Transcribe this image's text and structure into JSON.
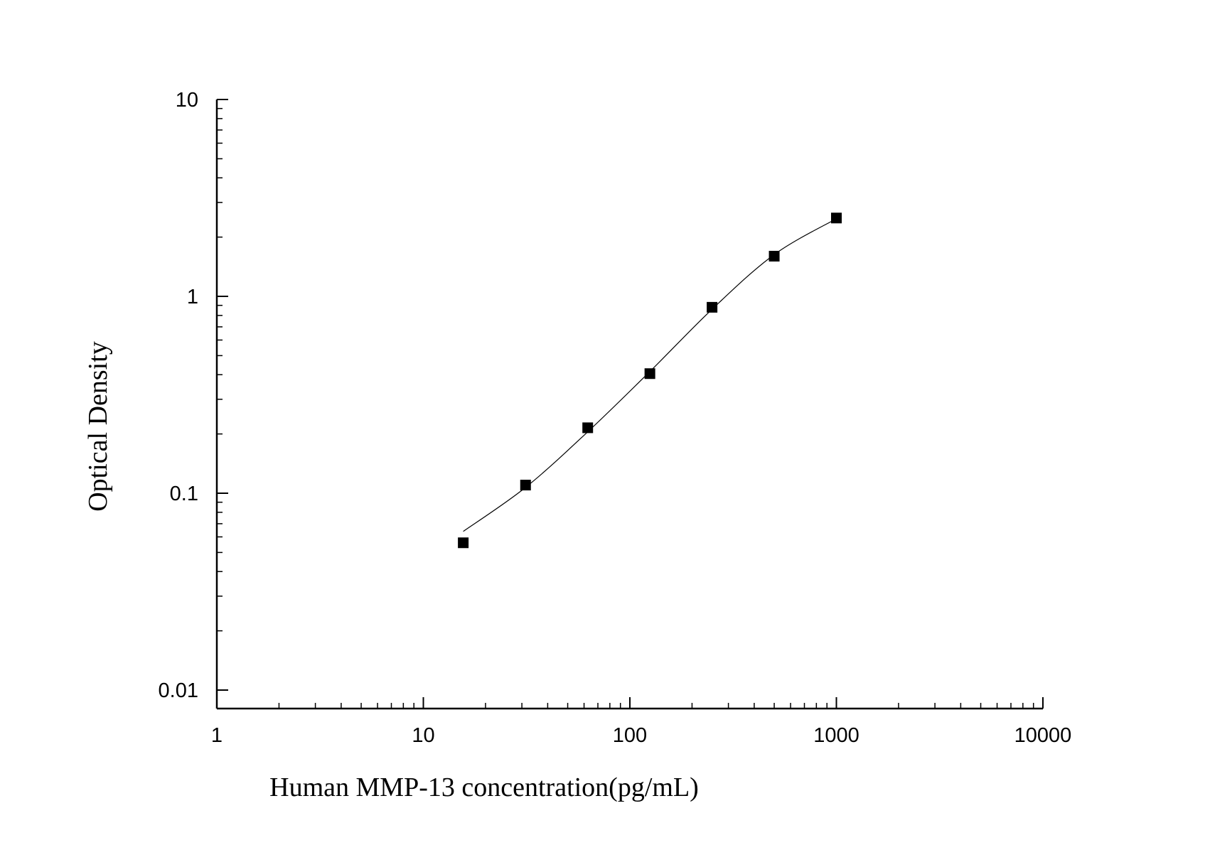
{
  "chart_data": {
    "type": "scatter",
    "title": "",
    "xlabel": "Human MMP-13 concentration(pg/mL)",
    "ylabel": "Optical Density",
    "x_scale": "log",
    "y_scale": "log",
    "xlim": [
      1,
      10000
    ],
    "ylim": [
      0.01,
      10
    ],
    "x_ticks": [
      "1",
      "10",
      "100",
      "1000",
      "10000"
    ],
    "y_ticks": [
      "10",
      "1",
      "0.1",
      "0.01"
    ],
    "grid": false,
    "legend": "none",
    "series": [
      {
        "marker": "square",
        "color": "#000000",
        "x": [
          15.6,
          31.25,
          62.5,
          125,
          250,
          500,
          1000
        ],
        "y": [
          0.056,
          0.11,
          0.215,
          0.405,
          0.88,
          1.6,
          2.5
        ]
      }
    ],
    "fit_curve": {
      "color": "#000000",
      "x": [
        15.6,
        31.25,
        62.5,
        125,
        250,
        500,
        1000
      ],
      "y": [
        0.064,
        0.107,
        0.205,
        0.415,
        0.86,
        1.63,
        2.48
      ]
    }
  }
}
